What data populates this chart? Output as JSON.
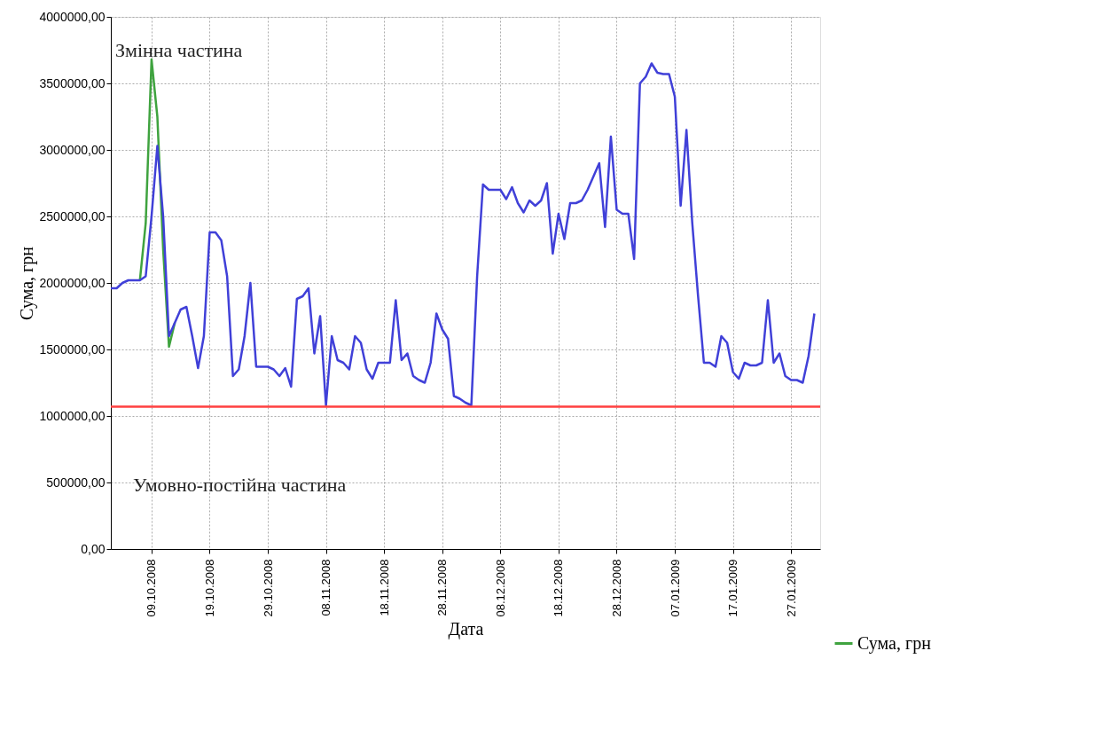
{
  "chart_data": {
    "type": "line",
    "xlabel": "Дата",
    "ylabel": "Сума, грн",
    "annotations": [
      "Змінна частина",
      "Умовно-постійна частина"
    ],
    "x": [
      "2008-10-02",
      "2008-10-03",
      "2008-10-04",
      "2008-10-05",
      "2008-10-06",
      "2008-10-07",
      "2008-10-08",
      "2008-10-09",
      "2008-10-10",
      "2008-10-11",
      "2008-10-12",
      "2008-10-13",
      "2008-10-14",
      "2008-10-15",
      "2008-10-16",
      "2008-10-17",
      "2008-10-18",
      "2008-10-19",
      "2008-10-20",
      "2008-10-21",
      "2008-10-22",
      "2008-10-23",
      "2008-10-24",
      "2008-10-25",
      "2008-10-26",
      "2008-10-27",
      "2008-10-28",
      "2008-10-29",
      "2008-10-30",
      "2008-10-31",
      "2008-11-01",
      "2008-11-02",
      "2008-11-03",
      "2008-11-04",
      "2008-11-05",
      "2008-11-06",
      "2008-11-07",
      "2008-11-08",
      "2008-11-09",
      "2008-11-10",
      "2008-11-11",
      "2008-11-12",
      "2008-11-13",
      "2008-11-14",
      "2008-11-15",
      "2008-11-16",
      "2008-11-17",
      "2008-11-18",
      "2008-11-19",
      "2008-11-20",
      "2008-11-21",
      "2008-11-22",
      "2008-11-23",
      "2008-11-24",
      "2008-11-25",
      "2008-11-26",
      "2008-11-27",
      "2008-11-28",
      "2008-11-29",
      "2008-11-30",
      "2008-12-01",
      "2008-12-02",
      "2008-12-03",
      "2008-12-04",
      "2008-12-05",
      "2008-12-06",
      "2008-12-07",
      "2008-12-08",
      "2008-12-09",
      "2008-12-10",
      "2008-12-11",
      "2008-12-12",
      "2008-12-13",
      "2008-12-14",
      "2008-12-15",
      "2008-12-16",
      "2008-12-17",
      "2008-12-18",
      "2008-12-19",
      "2008-12-20",
      "2008-12-21",
      "2008-12-22",
      "2008-12-23",
      "2008-12-24",
      "2008-12-25",
      "2008-12-26",
      "2008-12-27",
      "2008-12-28",
      "2008-12-29",
      "2008-12-30",
      "2008-12-31",
      "2009-01-01",
      "2009-01-02",
      "2009-01-03",
      "2009-01-04",
      "2009-01-05",
      "2009-01-06",
      "2009-01-07",
      "2009-01-08",
      "2009-01-09",
      "2009-01-10",
      "2009-01-11",
      "2009-01-12",
      "2009-01-13",
      "2009-01-14",
      "2009-01-15",
      "2009-01-16",
      "2009-01-17",
      "2009-01-18",
      "2009-01-19",
      "2009-01-20",
      "2009-01-21",
      "2009-01-22",
      "2009-01-23",
      "2009-01-24",
      "2009-01-25",
      "2009-01-26",
      "2009-01-27",
      "2009-01-28",
      "2009-01-29",
      "2009-01-30",
      "2009-01-31"
    ],
    "series": [
      {
        "name": "Сума, грн",
        "color": "#3fa33f",
        "values": [
          null,
          null,
          null,
          null,
          null,
          2020000,
          2450000,
          3680000,
          3250000,
          2250000,
          1520000,
          1700000,
          null,
          null,
          null,
          null,
          null,
          null,
          null,
          null,
          null,
          null,
          null,
          null,
          null,
          null,
          null,
          null,
          null,
          null,
          null,
          null,
          null,
          null,
          null,
          null,
          null,
          null,
          null,
          null,
          null,
          null,
          null,
          null,
          null,
          null,
          null,
          null,
          null,
          null,
          null,
          null,
          null,
          null,
          null,
          null,
          null,
          null,
          null,
          null,
          null,
          null,
          null,
          null,
          null,
          null,
          null,
          null,
          null,
          null,
          null,
          null,
          null,
          null,
          null,
          null,
          null,
          null,
          null,
          null,
          null,
          null,
          null,
          null,
          null,
          null,
          null,
          null,
          null,
          null,
          null,
          null,
          null,
          null,
          null,
          null,
          null,
          null,
          null,
          null,
          null,
          null,
          null,
          null,
          null,
          null,
          null,
          null,
          null,
          null,
          null,
          null,
          null,
          null,
          null,
          null,
          null,
          null,
          null,
          null,
          null,
          null
        ]
      },
      {
        "color": "#4040d8",
        "values": [
          1960000,
          1960000,
          2000000,
          2020000,
          2020000,
          2020000,
          2050000,
          2500000,
          3030000,
          2500000,
          1600000,
          1700000,
          1800000,
          1820000,
          1600000,
          1360000,
          1600000,
          2380000,
          2380000,
          2320000,
          2050000,
          1300000,
          1350000,
          1600000,
          2000000,
          1370000,
          1370000,
          1370000,
          1350000,
          1300000,
          1360000,
          1220000,
          1880000,
          1900000,
          1960000,
          1470000,
          1750000,
          1080000,
          1600000,
          1420000,
          1400000,
          1350000,
          1600000,
          1550000,
          1350000,
          1280000,
          1400000,
          1400000,
          1400000,
          1870000,
          1420000,
          1470000,
          1300000,
          1270000,
          1250000,
          1400000,
          1770000,
          1650000,
          1580000,
          1150000,
          1130000,
          1100000,
          1080000,
          2050000,
          2740000,
          2700000,
          2700000,
          2700000,
          2630000,
          2720000,
          2600000,
          2530000,
          2620000,
          2580000,
          2620000,
          2750000,
          2220000,
          2520000,
          2330000,
          2600000,
          2600000,
          2620000,
          2700000,
          2800000,
          2900000,
          2420000,
          3100000,
          2550000,
          2520000,
          2520000,
          2180000,
          3500000,
          3550000,
          3650000,
          3580000,
          3570000,
          3570000,
          3400000,
          2580000,
          3150000,
          2450000,
          1900000,
          1400000,
          1400000,
          1370000,
          1600000,
          1550000,
          1330000,
          1280000,
          1400000,
          1380000,
          1380000,
          1400000,
          1870000,
          1400000,
          1470000,
          1300000,
          1270000,
          1270000,
          1250000,
          1450000,
          1770000
        ]
      }
    ],
    "ref_lines": [
      {
        "axis": "y",
        "value": 1070000,
        "color": "#ff4040"
      }
    ],
    "xlim": [
      "2008-10-02",
      "2009-02-01"
    ],
    "xticks": [
      {
        "value": "2008-10-09",
        "label": "09.10.2008"
      },
      {
        "value": "2008-10-19",
        "label": "19.10.2008"
      },
      {
        "value": "2008-10-29",
        "label": "29.10.2008"
      },
      {
        "value": "2008-11-08",
        "label": "08.11.2008"
      },
      {
        "value": "2008-11-18",
        "label": "18.11.2008"
      },
      {
        "value": "2008-11-28",
        "label": "28.11.2008"
      },
      {
        "value": "2008-12-08",
        "label": "08.12.2008"
      },
      {
        "value": "2008-12-18",
        "label": "18.12.2008"
      },
      {
        "value": "2008-12-28",
        "label": "28.12.2008"
      },
      {
        "value": "2009-01-07",
        "label": "07.01.2009"
      },
      {
        "value": "2009-01-17",
        "label": "17.01.2009"
      },
      {
        "value": "2009-01-27",
        "label": "27.01.2009"
      }
    ],
    "ylim": [
      0,
      4000000
    ],
    "yticks": [
      {
        "value": 0,
        "label": "0,00"
      },
      {
        "value": 500000,
        "label": "500000,00"
      },
      {
        "value": 1000000,
        "label": "1000000,00"
      },
      {
        "value": 1500000,
        "label": "1500000,00"
      },
      {
        "value": 2000000,
        "label": "2000000,00"
      },
      {
        "value": 2500000,
        "label": "2500000,00"
      },
      {
        "value": 3000000,
        "label": "3000000,00"
      },
      {
        "value": 3500000,
        "label": "3500000,00"
      },
      {
        "value": 4000000,
        "label": "4000000,00"
      }
    ],
    "grid": true,
    "legend": "bottom right",
    "marker": "none",
    "line_style": "solid"
  }
}
